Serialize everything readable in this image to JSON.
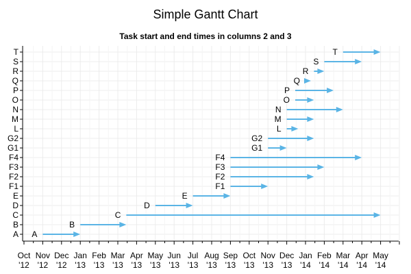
{
  "chart_data": {
    "type": "gantt",
    "title": "Simple Gantt Chart",
    "subtitle": "Task start and end times in columns 2 and 3",
    "xlabel": "",
    "ylabel": "",
    "x_axis": {
      "min": "2012-10-01",
      "max": "2014-06-01",
      "tick_labels": [
        [
          "Oct",
          "'12"
        ],
        [
          "Nov",
          "'12"
        ],
        [
          "Dec",
          "'12"
        ],
        [
          "Jan",
          "'13"
        ],
        [
          "Feb",
          "'13"
        ],
        [
          "Mar",
          "'13"
        ],
        [
          "Apr",
          "'13"
        ],
        [
          "May",
          "'13"
        ],
        [
          "Jun",
          "'13"
        ],
        [
          "Jul",
          "'13"
        ],
        [
          "Aug",
          "'13"
        ],
        [
          "Sep",
          "'13"
        ],
        [
          "Oct",
          "'13"
        ],
        [
          "Nov",
          "'13"
        ],
        [
          "Dec",
          "'13"
        ],
        [
          "Jan",
          "'14"
        ],
        [
          "Feb",
          "'14"
        ],
        [
          "Mar",
          "'14"
        ],
        [
          "Apr",
          "'14"
        ],
        [
          "May",
          "'14"
        ]
      ]
    },
    "grid": true,
    "bar_color": "#5ab4e5",
    "tasks": [
      {
        "name": "A",
        "start": "2012-11-01",
        "end": "2013-01-01"
      },
      {
        "name": "B",
        "start": "2013-01-01",
        "end": "2013-03-15"
      },
      {
        "name": "C",
        "start": "2013-03-15",
        "end": "2014-05-01"
      },
      {
        "name": "D",
        "start": "2013-05-01",
        "end": "2013-07-01"
      },
      {
        "name": "E",
        "start": "2013-07-01",
        "end": "2013-09-01"
      },
      {
        "name": "F1",
        "start": "2013-09-01",
        "end": "2013-11-01"
      },
      {
        "name": "F2",
        "start": "2013-09-01",
        "end": "2014-01-15"
      },
      {
        "name": "F3",
        "start": "2013-09-01",
        "end": "2014-02-01"
      },
      {
        "name": "F4",
        "start": "2013-09-01",
        "end": "2014-04-01"
      },
      {
        "name": "G1",
        "start": "2013-11-01",
        "end": "2013-12-01"
      },
      {
        "name": "G2",
        "start": "2013-11-01",
        "end": "2014-01-15"
      },
      {
        "name": "L",
        "start": "2013-12-01",
        "end": "2013-12-20"
      },
      {
        "name": "M",
        "start": "2013-12-01",
        "end": "2014-01-15"
      },
      {
        "name": "N",
        "start": "2013-12-01",
        "end": "2014-03-01"
      },
      {
        "name": "O",
        "start": "2013-12-15",
        "end": "2014-01-15"
      },
      {
        "name": "P",
        "start": "2013-12-15",
        "end": "2014-02-15"
      },
      {
        "name": "Q",
        "start": "2014-01-01",
        "end": "2014-01-10"
      },
      {
        "name": "R",
        "start": "2014-01-15",
        "end": "2014-02-01"
      },
      {
        "name": "S",
        "start": "2014-02-01",
        "end": "2014-04-01"
      },
      {
        "name": "T",
        "start": "2014-03-01",
        "end": "2014-05-01"
      }
    ]
  }
}
